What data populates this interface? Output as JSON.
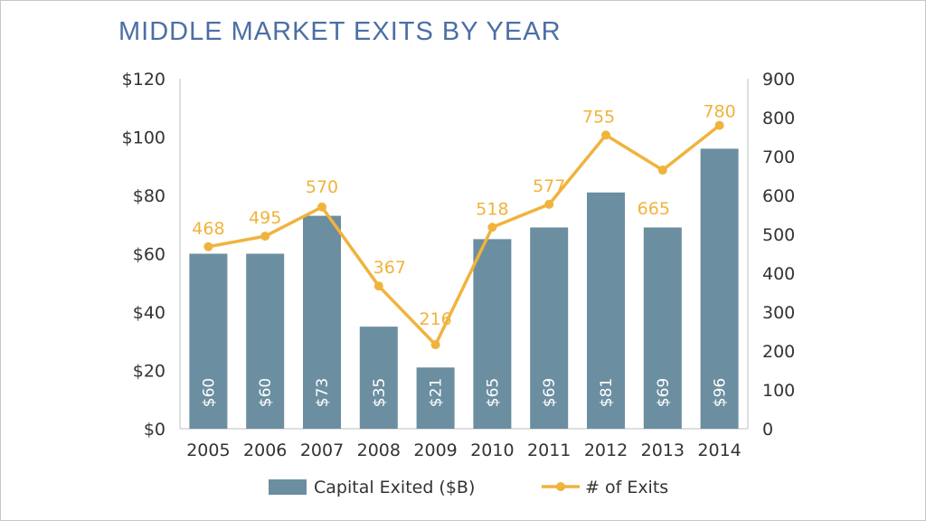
{
  "chart_data": {
    "type": "bar",
    "title": "MIDDLE MARKET EXITS BY YEAR",
    "categories": [
      "2005",
      "2006",
      "2007",
      "2008",
      "2009",
      "2010",
      "2011",
      "2012",
      "2013",
      "2014"
    ],
    "series": [
      {
        "name": "Capital Exited ($B)",
        "type": "bar",
        "axis": "left",
        "values": [
          60,
          60,
          73,
          35,
          21,
          65,
          69,
          81,
          69,
          96
        ],
        "labels": [
          "$60",
          "$60",
          "$73",
          "$35",
          "$21",
          "$65",
          "$69",
          "$81",
          "$69",
          "$96"
        ]
      },
      {
        "name": "# of Exits",
        "type": "line",
        "axis": "right",
        "values": [
          468,
          495,
          570,
          367,
          216,
          518,
          577,
          755,
          665,
          780
        ],
        "labels": [
          "468",
          "495",
          "570",
          "367",
          "216",
          "518",
          "577",
          "755",
          "665",
          "780"
        ]
      }
    ],
    "y_left": {
      "range": [
        0,
        120
      ],
      "ticks": [
        0,
        20,
        40,
        60,
        80,
        100,
        120
      ],
      "tick_labels": [
        "$0",
        "$20",
        "$40",
        "$60",
        "$80",
        "$100",
        "$120"
      ]
    },
    "y_right": {
      "range": [
        0,
        900
      ],
      "ticks": [
        0,
        100,
        200,
        300,
        400,
        500,
        600,
        700,
        800,
        900
      ],
      "tick_labels": [
        "0",
        "100",
        "200",
        "300",
        "400",
        "500",
        "600",
        "700",
        "800",
        "900"
      ]
    },
    "grid": false,
    "legend": "bottom",
    "colors": {
      "bar": "#6b8ea1",
      "line": "#f0b33c",
      "title": "#4a6fa5"
    }
  }
}
